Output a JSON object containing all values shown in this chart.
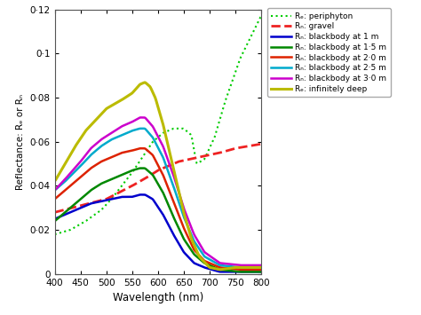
{
  "xlabel": "Wavelength (nm)",
  "ylabel": "Reflectance: Rₑ or Rₙ",
  "xlim": [
    400,
    800
  ],
  "ylim": [
    0,
    0.12
  ],
  "yticks": [
    0,
    0.02,
    0.04,
    0.06,
    0.08,
    0.1,
    0.12
  ],
  "ytick_labels": [
    "0",
    "0·02",
    "0·04",
    "0·06",
    "0·08",
    "0·1",
    "0·12"
  ],
  "xticks": [
    400,
    450,
    500,
    550,
    600,
    650,
    700,
    750,
    800
  ],
  "background_color": "#ffffff",
  "legend_entries": [
    {
      "label": "Rₑ: periphyton",
      "color": "#00cc00",
      "linestyle": "dotted",
      "linewidth": 1.5
    },
    {
      "label": "Rₙ: gravel",
      "color": "#ee2222",
      "linestyle": "dashed",
      "linewidth": 2.0
    },
    {
      "label": "Rₙ: blackbody at 1 m",
      "color": "#0000cc",
      "linestyle": "solid",
      "linewidth": 1.8
    },
    {
      "label": "Rₙ: blackbody at 1·5 m",
      "color": "#008800",
      "linestyle": "solid",
      "linewidth": 1.8
    },
    {
      "label": "Rₙ: blackbody at 2·0 m",
      "color": "#dd2200",
      "linestyle": "solid",
      "linewidth": 1.8
    },
    {
      "label": "Rₙ: blackbody at 2·5 m",
      "color": "#00aacc",
      "linestyle": "solid",
      "linewidth": 1.8
    },
    {
      "label": "Rₙ: blackbody at 3·0 m",
      "color": "#cc00cc",
      "linestyle": "solid",
      "linewidth": 1.8
    },
    {
      "label": "Rₑ: infinitely deep",
      "color": "#bbbb00",
      "linestyle": "solid",
      "linewidth": 2.2
    }
  ]
}
